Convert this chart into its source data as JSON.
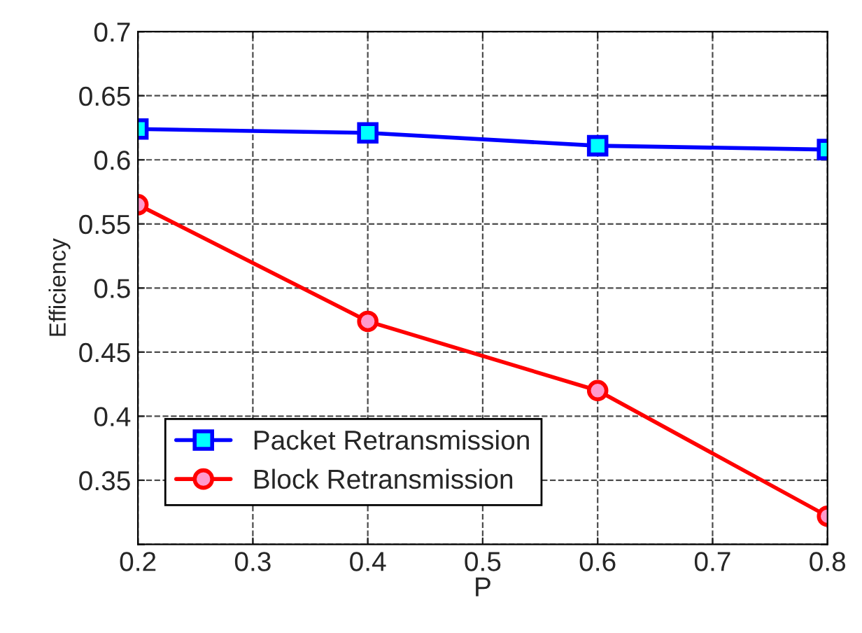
{
  "chart_data": {
    "type": "line",
    "xlabel": "P",
    "ylabel": "Efficiency",
    "x": [
      0.2,
      0.4,
      0.6,
      0.8
    ],
    "series": [
      {
        "name": "Packet Retransmission",
        "color": "#0000ff",
        "marker": "square",
        "values": [
          0.624,
          0.621,
          0.611,
          0.608
        ]
      },
      {
        "name": "Block Retransmission",
        "color": "#ff0000",
        "marker": "circle",
        "values": [
          0.565,
          0.474,
          0.42,
          0.322
        ]
      }
    ],
    "xlim": [
      0.2,
      0.8
    ],
    "xticks": [
      0.2,
      0.3,
      0.4,
      0.5,
      0.6,
      0.7,
      0.8
    ],
    "ylim": [
      0.3,
      0.7
    ],
    "yticks": [
      {
        "value": 0.3,
        "label": null
      },
      0.35,
      0.4,
      0.45,
      0.5,
      0.55,
      0.6,
      0.65,
      0.7
    ],
    "grid": true,
    "legend": "bottom left",
    "line_style": "solid"
  }
}
